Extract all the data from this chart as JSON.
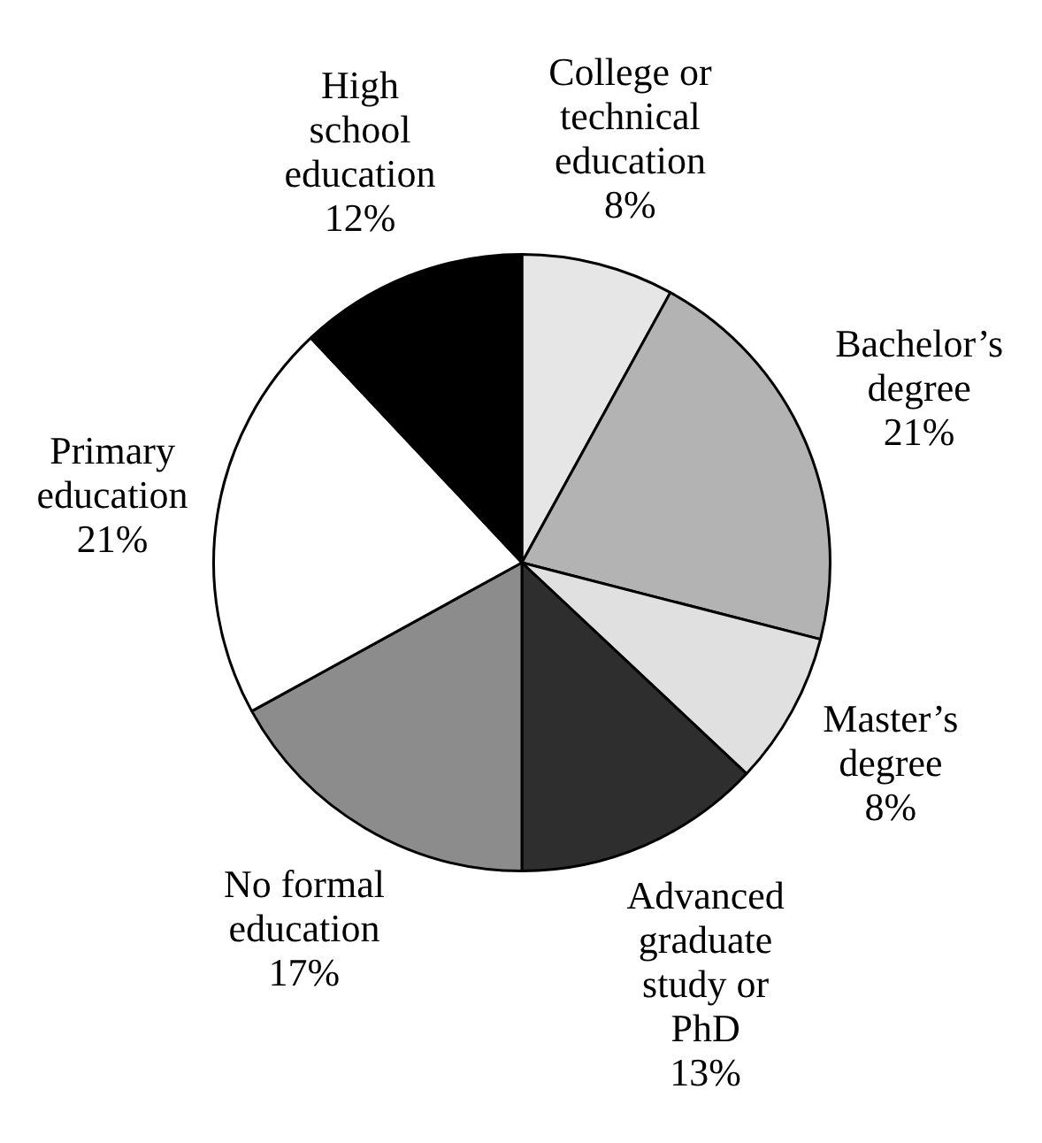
{
  "chart_data": {
    "type": "pie",
    "categories": [
      "College or technical education",
      "Bachelor’s degree",
      "Master’s degree",
      "Advanced graduate study or PhD",
      "No formal education",
      "Primary education",
      "High school education"
    ],
    "values": [
      8,
      21,
      8,
      13,
      17,
      21,
      12
    ],
    "value_labels": [
      "8%",
      "21%",
      "8%",
      "13%",
      "17%",
      "21%",
      "12%"
    ],
    "colors": [
      "#e6e6e6",
      "#b3b3b3",
      "#e0e0e0",
      "#2e2e2e",
      "#8c8c8c",
      "#ffffff",
      "#000000"
    ],
    "legend": false
  }
}
